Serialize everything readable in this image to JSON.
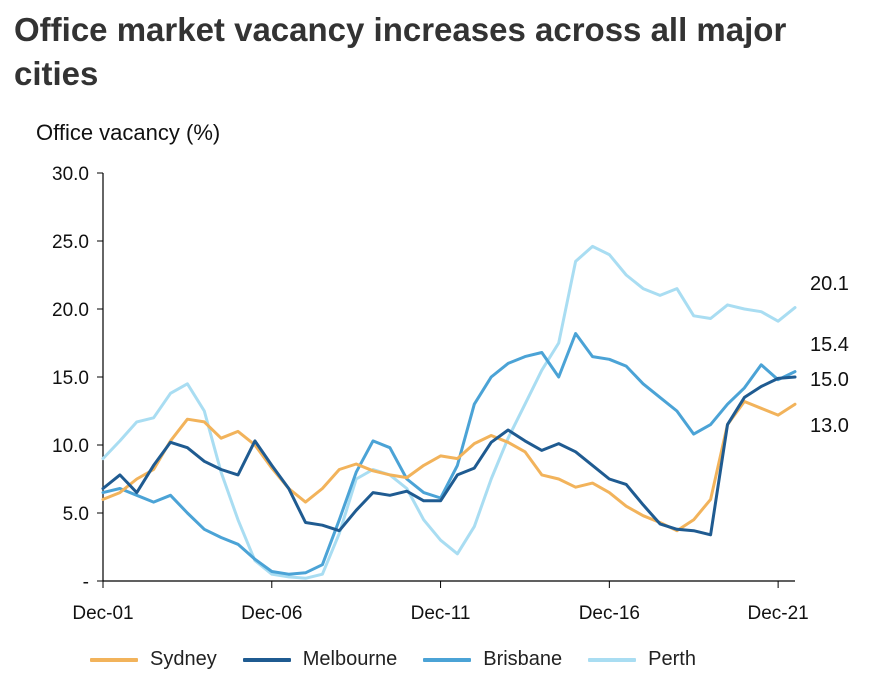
{
  "title": "Office market vacancy increases across all major cities",
  "chart_data": {
    "type": "line",
    "title": "Office market vacancy increases across all major cities",
    "ylabel": "Office vacancy (%)",
    "xlabel": "",
    "ylim": [
      0,
      30
    ],
    "ytick_labels": [
      "-",
      "5.0",
      "10.0",
      "15.0",
      "20.0",
      "25.0",
      "30.0"
    ],
    "xtick_labels": [
      "Dec-01",
      "Dec-06",
      "Dec-11",
      "Dec-16",
      "Dec-21"
    ],
    "x_start_year": 2001.9,
    "x_end_year": 2022.4,
    "end_labels": [
      "20.1",
      "15.4",
      "15.0",
      "13.0"
    ],
    "series": [
      {
        "name": "Sydney",
        "color": "#F2B35B",
        "x": [
          2001.9,
          2002.4,
          2002.9,
          2003.4,
          2003.9,
          2004.4,
          2004.9,
          2005.4,
          2005.9,
          2006.4,
          2006.9,
          2007.4,
          2007.9,
          2008.4,
          2008.9,
          2009.4,
          2009.9,
          2010.4,
          2010.9,
          2011.4,
          2011.9,
          2012.4,
          2012.9,
          2013.4,
          2013.9,
          2014.4,
          2014.9,
          2015.4,
          2015.9,
          2016.4,
          2016.9,
          2017.4,
          2017.9,
          2018.4,
          2018.9,
          2019.4,
          2019.9,
          2020.4,
          2020.9,
          2021.4,
          2021.9,
          2022.4
        ],
        "values": [
          6.0,
          6.5,
          7.5,
          8.2,
          10.3,
          11.9,
          11.7,
          10.5,
          11.0,
          10.0,
          8.3,
          6.8,
          5.8,
          6.8,
          8.2,
          8.6,
          8.1,
          7.8,
          7.6,
          8.5,
          9.2,
          9.0,
          10.1,
          10.7,
          10.2,
          9.5,
          7.8,
          7.5,
          6.9,
          7.2,
          6.5,
          5.5,
          4.8,
          4.3,
          3.7,
          4.5,
          6.0,
          11.5,
          13.2,
          12.7,
          12.2,
          13.0
        ]
      },
      {
        "name": "Melbourne",
        "color": "#1F5B91",
        "x": [
          2001.9,
          2002.4,
          2002.9,
          2003.4,
          2003.9,
          2004.4,
          2004.9,
          2005.4,
          2005.9,
          2006.4,
          2006.9,
          2007.4,
          2007.9,
          2008.4,
          2008.9,
          2009.4,
          2009.9,
          2010.4,
          2010.9,
          2011.4,
          2011.9,
          2012.4,
          2012.9,
          2013.4,
          2013.9,
          2014.4,
          2014.9,
          2015.4,
          2015.9,
          2016.4,
          2016.9,
          2017.4,
          2017.9,
          2018.4,
          2018.9,
          2019.4,
          2019.9,
          2020.4,
          2020.9,
          2021.4,
          2021.9,
          2022.4
        ],
        "values": [
          6.8,
          7.8,
          6.5,
          8.5,
          10.2,
          9.8,
          8.8,
          8.2,
          7.8,
          10.3,
          8.5,
          6.8,
          4.3,
          4.1,
          3.7,
          5.2,
          6.5,
          6.3,
          6.6,
          5.9,
          5.9,
          7.8,
          8.3,
          10.2,
          11.1,
          10.3,
          9.6,
          10.1,
          9.5,
          8.5,
          7.5,
          7.1,
          5.6,
          4.2,
          3.8,
          3.7,
          3.4,
          11.5,
          13.5,
          14.3,
          14.9,
          15.0
        ]
      },
      {
        "name": "Brisbane",
        "color": "#4BA3D6",
        "x": [
          2001.9,
          2002.4,
          2002.9,
          2003.4,
          2003.9,
          2004.4,
          2004.9,
          2005.4,
          2005.9,
          2006.4,
          2006.9,
          2007.4,
          2007.9,
          2008.4,
          2008.9,
          2009.4,
          2009.9,
          2010.4,
          2010.9,
          2011.4,
          2011.9,
          2012.4,
          2012.9,
          2013.4,
          2013.9,
          2014.4,
          2014.9,
          2015.4,
          2015.9,
          2016.4,
          2016.9,
          2017.4,
          2017.9,
          2018.4,
          2018.9,
          2019.4,
          2019.9,
          2020.4,
          2020.9,
          2021.4,
          2021.9,
          2022.4
        ],
        "values": [
          6.5,
          6.8,
          6.3,
          5.8,
          6.3,
          5.0,
          3.8,
          3.2,
          2.7,
          1.6,
          0.7,
          0.5,
          0.6,
          1.2,
          4.5,
          8.0,
          10.3,
          9.8,
          7.5,
          6.5,
          6.1,
          8.5,
          13.0,
          15.0,
          16.0,
          16.5,
          16.8,
          15.0,
          18.2,
          16.5,
          16.3,
          15.8,
          14.5,
          13.5,
          12.5,
          10.8,
          11.5,
          13.0,
          14.2,
          15.9,
          14.8,
          15.4
        ]
      },
      {
        "name": "Perth",
        "color": "#A9DDF2",
        "x": [
          2001.9,
          2002.4,
          2002.9,
          2003.4,
          2003.9,
          2004.4,
          2004.9,
          2005.4,
          2005.9,
          2006.4,
          2006.9,
          2007.4,
          2007.9,
          2008.4,
          2008.9,
          2009.4,
          2009.9,
          2010.4,
          2010.9,
          2011.4,
          2011.9,
          2012.4,
          2012.9,
          2013.4,
          2013.9,
          2014.4,
          2014.9,
          2015.4,
          2015.9,
          2016.4,
          2016.9,
          2017.4,
          2017.9,
          2018.4,
          2018.9,
          2019.4,
          2019.9,
          2020.4,
          2020.9,
          2021.4,
          2021.9,
          2022.4
        ],
        "values": [
          9.0,
          10.3,
          11.7,
          12.0,
          13.8,
          14.5,
          12.5,
          8.0,
          4.5,
          1.5,
          0.5,
          0.3,
          0.2,
          0.5,
          3.5,
          7.5,
          8.2,
          7.8,
          6.8,
          4.5,
          3.0,
          2.0,
          4.0,
          7.5,
          10.5,
          13.0,
          15.5,
          17.5,
          23.5,
          24.6,
          24.0,
          22.5,
          21.5,
          21.0,
          21.5,
          19.5,
          19.3,
          20.3,
          20.0,
          19.8,
          19.1,
          20.1
        ]
      }
    ]
  }
}
